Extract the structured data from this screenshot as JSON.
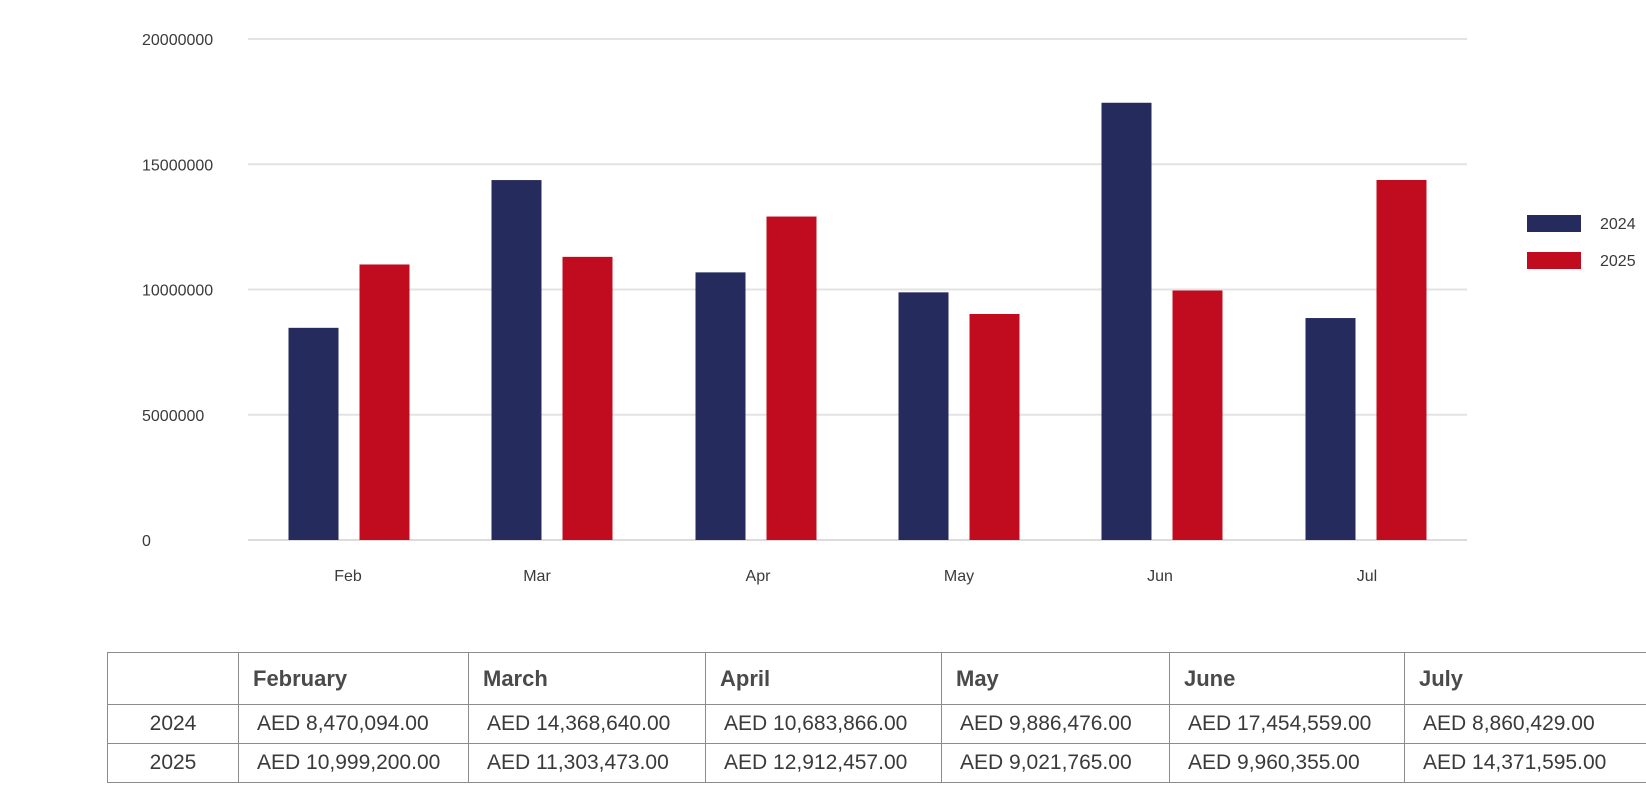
{
  "chart_data": {
    "type": "bar",
    "categories": [
      "Feb",
      "Mar",
      "Apr",
      "May",
      "Jun",
      "Jul"
    ],
    "series": [
      {
        "name": "2024",
        "color": "#252b5c",
        "values": [
          8470094.0,
          14368640.0,
          10683866.0,
          9886476.0,
          17454559.0,
          8860429.0
        ]
      },
      {
        "name": "2025",
        "color": "#c00c1e",
        "values": [
          10999200.0,
          11303473.0,
          12912457.0,
          9021765.0,
          9960355.0,
          14371595.0
        ]
      }
    ],
    "yticks": [
      "0",
      "5000000",
      "10000000",
      "15000000",
      "20000000"
    ],
    "ylim": [
      0,
      20000000
    ],
    "grid": true,
    "legend": "right",
    "title": "",
    "xlabel": "",
    "ylabel": ""
  },
  "table": {
    "header": [
      "February",
      "March",
      "April",
      "May",
      "June",
      "July"
    ],
    "rows": [
      {
        "label": "2024",
        "cells": [
          "AED 8,470,094.00",
          "AED 14,368,640.00",
          "AED 10,683,866.00",
          "AED 9,886,476.00",
          "AED 17,454,559.00",
          "AED 8,860,429.00"
        ]
      },
      {
        "label": "2025",
        "cells": [
          "AED 10,999,200.00",
          "AED 11,303,473.00",
          "AED 12,912,457.00",
          "AED 9,021,765.00",
          "AED 9,960,355.00",
          "AED 14,371,595.00"
        ]
      }
    ]
  }
}
